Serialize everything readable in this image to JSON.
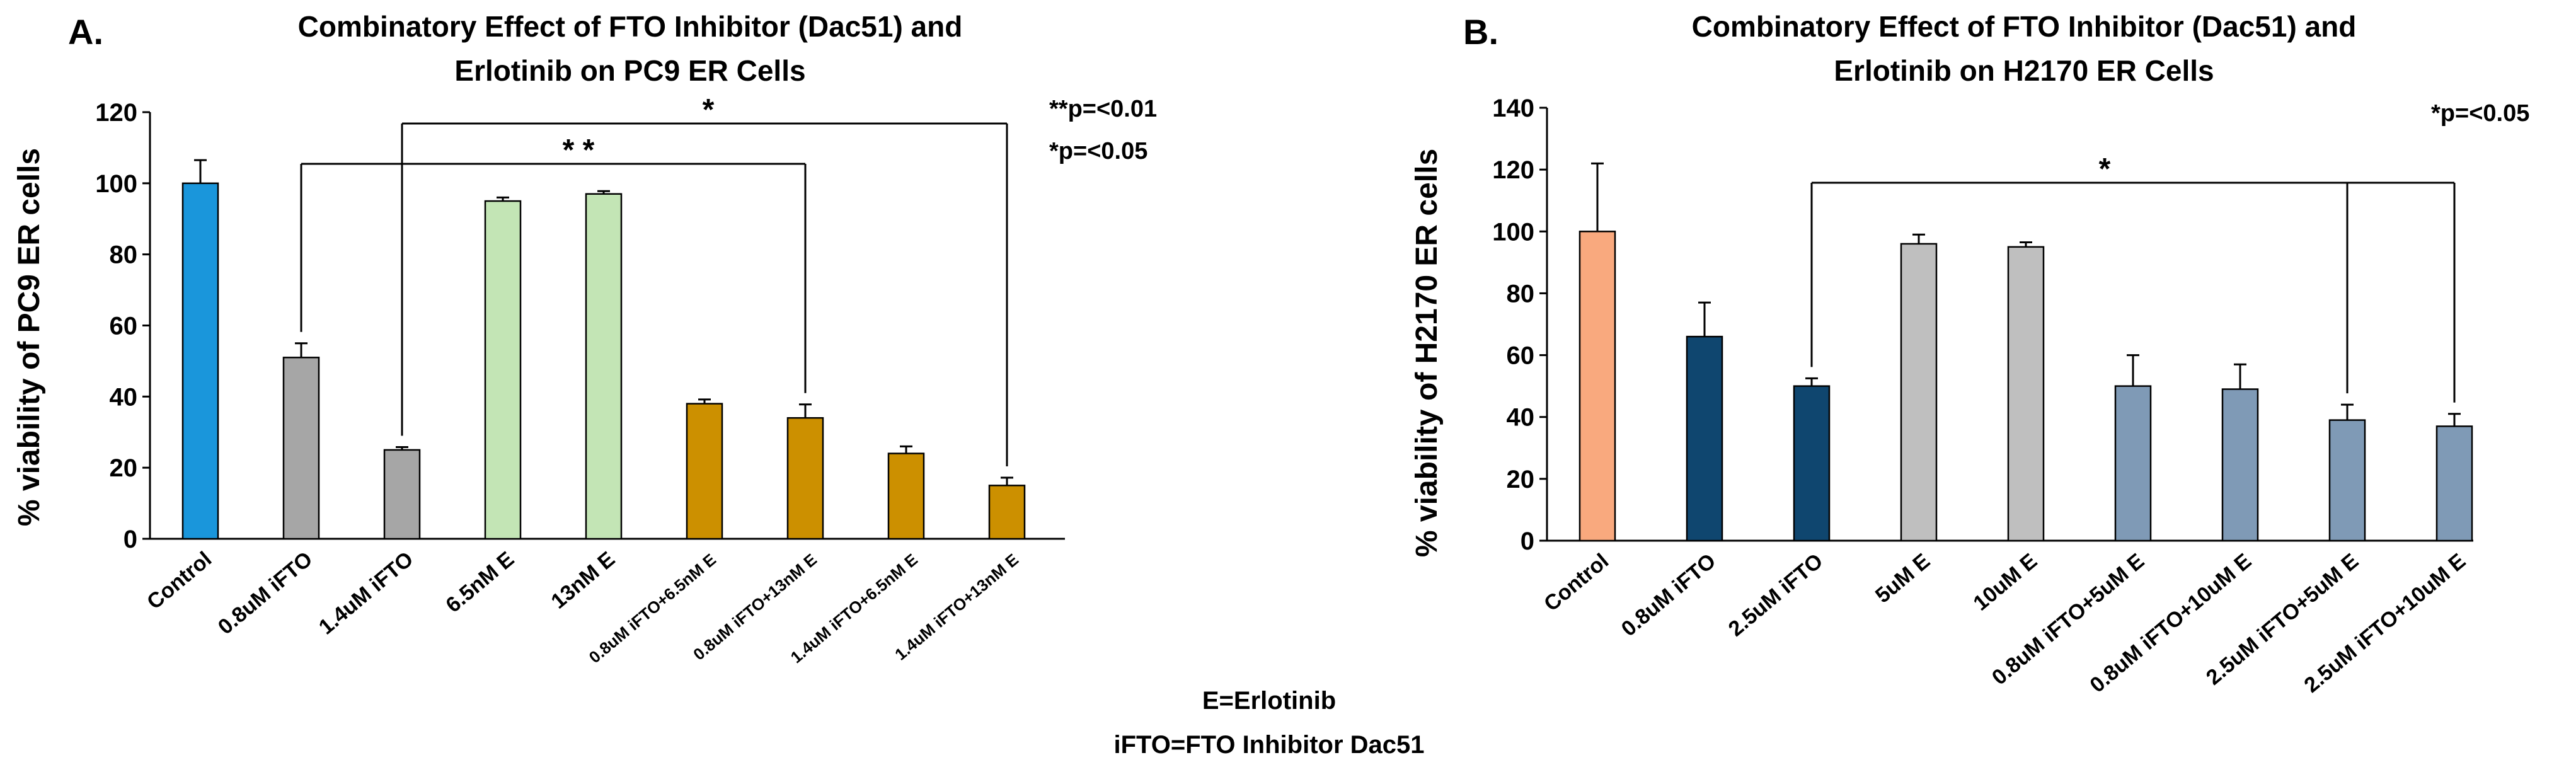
{
  "chart_data": [
    {
      "type": "bar",
      "panel": "A.",
      "title_lines": [
        "Combinatory Effect of FTO Inhibitor (Dac51) and",
        "Erlotinib on PC9 ER Cells"
      ],
      "ylabel": "% viability of PC9 ER cells",
      "ylim": [
        0,
        120
      ],
      "yticks": [
        0,
        20,
        40,
        60,
        80,
        100,
        120
      ],
      "categories": [
        "Control",
        "0.8uM iFTO",
        "1.4uM iFTO",
        "6.5nM E",
        "13nM E",
        "0.8uM iFTO+6.5nM E",
        "0.8uM iFTO+13nM E",
        "1.4uM iFTO+6.5nM E",
        "1.4uM iFTO+13nM E"
      ],
      "values": [
        100,
        51,
        25,
        95,
        97,
        38,
        34,
        24,
        15
      ],
      "errors": [
        6.5,
        4,
        0.8,
        1,
        0.8,
        1.2,
        3.8,
        2,
        2.2
      ],
      "colors": [
        "#1a96db",
        "#a6a6a6",
        "#a6a6a6",
        "#c3e5b5",
        "#c3e5b5",
        "#cc9000",
        "#cc9000",
        "#cc9000",
        "#cc9000"
      ],
      "significance": [
        {
          "from": 1,
          "to": 6,
          "label": "* *"
        },
        {
          "from": 2,
          "to": 8,
          "label": "*"
        }
      ],
      "notes": [
        "**p=<0.01",
        "*p=<0.05"
      ]
    },
    {
      "type": "bar",
      "panel": "B.",
      "title_lines": [
        "Combinatory Effect of FTO Inhibitor (Dac51) and",
        "Erlotinib on H2170 ER Cells"
      ],
      "ylabel": "% viability of H2170 ER cells",
      "ylim": [
        0,
        140
      ],
      "yticks": [
        0,
        20,
        40,
        60,
        80,
        100,
        120,
        140
      ],
      "categories": [
        "Control",
        "0.8uM iFTO",
        "2.5uM iFTO",
        "5uM E",
        "10uM E",
        "0.8uM iFTO+5uM E",
        "0.8uM iFTO+10uM E",
        "2.5uM iFTO+5uM E",
        "2.5uM iFTO+10uM E"
      ],
      "values": [
        100,
        66,
        50,
        96,
        95,
        50,
        49,
        39,
        37
      ],
      "errors": [
        22,
        11,
        2.5,
        3,
        1.5,
        10,
        8,
        5,
        4
      ],
      "colors": [
        "#f9a97e",
        "#0f466f",
        "#0f466f",
        "#bfbfbf",
        "#bfbfbf",
        "#7f9ab6",
        "#7f9ab6",
        "#7f9ab6",
        "#7f9ab6"
      ],
      "significance": [
        {
          "from": 2,
          "to": 8,
          "label": "*",
          "mid": 7
        }
      ],
      "notes": [
        "*p=<0.05"
      ]
    }
  ],
  "footnotes": [
    "E=Erlotinib",
    "iFTO=FTO Inhibitor Dac51"
  ]
}
